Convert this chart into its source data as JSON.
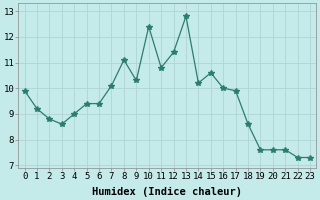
{
  "x": [
    0,
    1,
    2,
    3,
    4,
    5,
    6,
    7,
    8,
    9,
    10,
    11,
    12,
    13,
    14,
    15,
    16,
    17,
    18,
    19,
    20,
    21,
    22,
    23
  ],
  "y": [
    9.9,
    9.2,
    8.8,
    8.6,
    9.0,
    9.4,
    9.4,
    10.1,
    11.1,
    10.3,
    12.4,
    10.8,
    11.4,
    12.8,
    10.2,
    10.6,
    10.0,
    9.9,
    8.6,
    7.6,
    7.6,
    7.6,
    7.3,
    7.3
  ],
  "line_color": "#2d7d6f",
  "marker": "*",
  "marker_size": 4,
  "background_color": "#c5eaea",
  "grid_color": "#b0d4d4",
  "xlabel": "Humidex (Indice chaleur)",
  "xlabel_fontsize": 7.5,
  "ylabel_ticks": [
    7,
    8,
    9,
    10,
    11,
    12,
    13
  ],
  "xtick_labels": [
    "0",
    "1",
    "2",
    "3",
    "4",
    "5",
    "6",
    "7",
    "8",
    "9",
    "10",
    "11",
    "12",
    "13",
    "14",
    "15",
    "16",
    "17",
    "18",
    "19",
    "20",
    "21",
    "22",
    "23"
  ],
  "xlim": [
    -0.5,
    23.5
  ],
  "ylim": [
    6.9,
    13.3
  ],
  "tick_fontsize": 6.5
}
